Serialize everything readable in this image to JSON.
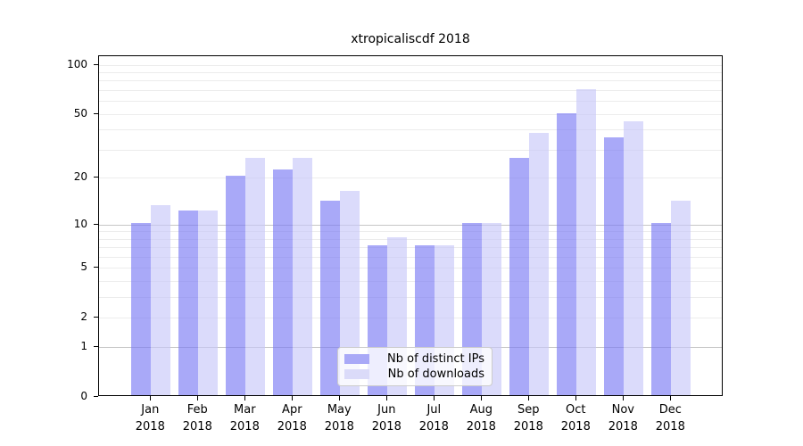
{
  "title": "xtropicaliscdf 2018",
  "chart_data": {
    "type": "bar",
    "title": "xtropicaliscdf 2018",
    "categories": [
      "Jan",
      "Feb",
      "Mar",
      "Apr",
      "May",
      "Jun",
      "Jul",
      "Aug",
      "Sep",
      "Oct",
      "Nov",
      "Dec"
    ],
    "year": "2018",
    "series": [
      {
        "name": "Nb of distinct IPs",
        "color": "#a9a9f7",
        "bar_rgba": "rgba(123,123,244,0.65)",
        "values": [
          10,
          12,
          20,
          22,
          14,
          7,
          7,
          10,
          26,
          49,
          35,
          10
        ]
      },
      {
        "name": "Nb of downloads",
        "color": "#dbdbf9",
        "bar_rgba": "rgba(200,200,249,0.65)",
        "values": [
          13,
          12,
          26,
          26,
          16,
          8,
          7,
          10,
          37,
          69,
          44,
          14
        ]
      }
    ],
    "yscale": "log1p",
    "ytick_labels": [
      "0",
      "1",
      "2",
      "5",
      "10",
      "20",
      "50",
      "100"
    ],
    "ytick_values": [
      0,
      1,
      2,
      5,
      10,
      20,
      50,
      100
    ],
    "ylim": [
      0,
      120
    ],
    "grid": "horizontal",
    "legend_position": "bottom-center"
  }
}
